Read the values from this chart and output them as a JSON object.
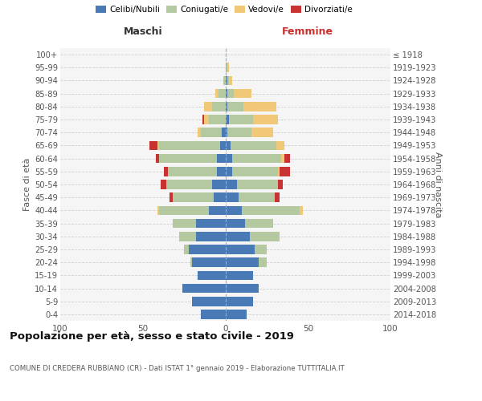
{
  "age_groups": [
    "0-4",
    "5-9",
    "10-14",
    "15-19",
    "20-24",
    "25-29",
    "30-34",
    "35-39",
    "40-44",
    "45-49",
    "50-54",
    "55-59",
    "60-64",
    "65-69",
    "70-74",
    "75-79",
    "80-84",
    "85-89",
    "90-94",
    "95-99",
    "100+"
  ],
  "birth_years": [
    "2014-2018",
    "2009-2013",
    "2004-2008",
    "1999-2003",
    "1994-1998",
    "1989-1993",
    "1984-1988",
    "1979-1983",
    "1974-1978",
    "1969-1973",
    "1964-1968",
    "1959-1963",
    "1954-1958",
    "1949-1953",
    "1944-1948",
    "1939-1943",
    "1934-1938",
    "1929-1933",
    "1924-1928",
    "1919-1923",
    "≤ 1918"
  ],
  "males": {
    "celibi": [
      15,
      20,
      26,
      17,
      20,
      22,
      18,
      18,
      10,
      7,
      8,
      5,
      5,
      3,
      2,
      0,
      0,
      0,
      0,
      0,
      0
    ],
    "coniugati": [
      0,
      0,
      0,
      0,
      1,
      3,
      10,
      14,
      30,
      25,
      28,
      30,
      35,
      37,
      13,
      10,
      8,
      4,
      1,
      0,
      0
    ],
    "vedovi": [
      0,
      0,
      0,
      0,
      0,
      0,
      0,
      0,
      1,
      0,
      0,
      0,
      0,
      1,
      2,
      3,
      5,
      2,
      0,
      0,
      0
    ],
    "divorziati": [
      0,
      0,
      0,
      0,
      0,
      0,
      0,
      0,
      0,
      2,
      3,
      2,
      2,
      5,
      0,
      1,
      0,
      0,
      0,
      0,
      0
    ]
  },
  "females": {
    "nubili": [
      13,
      17,
      20,
      17,
      20,
      18,
      15,
      12,
      10,
      8,
      7,
      4,
      4,
      3,
      1,
      2,
      1,
      1,
      1,
      0,
      0
    ],
    "coniugate": [
      0,
      0,
      0,
      0,
      5,
      7,
      18,
      17,
      35,
      22,
      25,
      28,
      30,
      28,
      15,
      15,
      10,
      4,
      1,
      1,
      0
    ],
    "vedove": [
      0,
      0,
      0,
      0,
      0,
      0,
      0,
      0,
      2,
      0,
      0,
      1,
      2,
      5,
      13,
      15,
      20,
      11,
      2,
      1,
      0
    ],
    "divorziate": [
      0,
      0,
      0,
      0,
      0,
      0,
      0,
      0,
      0,
      3,
      3,
      6,
      3,
      0,
      0,
      0,
      0,
      0,
      0,
      0,
      0
    ]
  },
  "colors": {
    "celibi": "#4a7ab5",
    "coniugati": "#b5c9a0",
    "vedovi": "#f0c878",
    "divorziati": "#c83232"
  },
  "title": "Popolazione per età, sesso e stato civile - 2019",
  "subtitle": "COMUNE DI CREDERA RUBBIANO (CR) - Dati ISTAT 1° gennaio 2019 - Elaborazione TUTTITALIA.IT",
  "header_left": "Maschi",
  "header_right": "Femmine",
  "ylabel_left": "Fasce di età",
  "ylabel_right": "Anni di nascita",
  "xlim": 100,
  "bg_color": "#f5f5f5",
  "grid_color": "#cccccc",
  "legend_labels": [
    "Celibi/Nubili",
    "Coniugati/e",
    "Vedovi/e",
    "Divorziati/e"
  ]
}
